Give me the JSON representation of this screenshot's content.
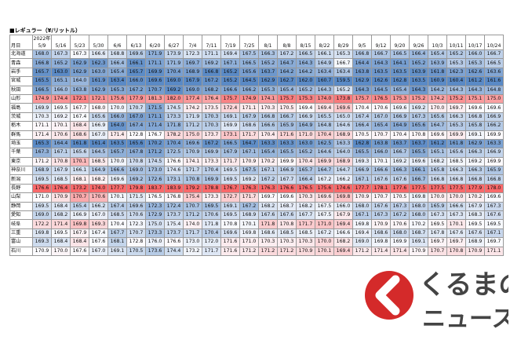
{
  "title": "■レギュラー（¥/リットル）",
  "table": {
    "year": "2022年",
    "corner": "月日",
    "columns": [
      "5/9",
      "5/16",
      "5/23",
      "5/30",
      "6/6",
      "6/13",
      "6/20",
      "6/27",
      "7/4",
      "7/11",
      "7/19",
      "7/25",
      "8/1",
      "8/8",
      "8/15",
      "8/22",
      "8/29",
      "9/5",
      "9/12",
      "9/20",
      "9/26",
      "10/3",
      "10/11",
      "10/17",
      "10/24"
    ],
    "rows": [
      {
        "name": "北海道",
        "values": [
          "168.0",
          "167.3",
          "167.3",
          "166.6",
          "168.8",
          "169.6",
          "171.9",
          "173.9",
          "172.3",
          "171.1",
          "169.4",
          "167.5",
          "166.3",
          "167.2",
          "166.5",
          "166.1",
          "165.3",
          "166.8",
          "166.7",
          "166.5",
          "166.4",
          "165.4",
          "165.2",
          "166.0",
          "166.7"
        ]
      },
      {
        "name": "青森",
        "values": [
          "166.8",
          "165.2",
          "162.9",
          "162.3",
          "166.4",
          "166.1",
          "171.1",
          "171.9",
          "169.7",
          "169.2",
          "167.1",
          "166.5",
          "165.2",
          "164.7",
          "164.3",
          "164.9",
          "166.7",
          "164.4",
          "164.3",
          "164.1",
          "165.2",
          "163.9",
          "165.3",
          "165.3",
          "166.5"
        ]
      },
      {
        "name": "岩手",
        "values": [
          "165.7",
          "163.0",
          "162.9",
          "163.0",
          "165.4",
          "165.7",
          "169.9",
          "170.4",
          "168.9",
          "166.8",
          "165.2",
          "165.6",
          "163.7",
          "164.2",
          "164.2",
          "163.4",
          "163.4",
          "163.8",
          "163.5",
          "163.5",
          "163.9",
          "161.8",
          "162.3",
          "162.6",
          "163.6"
        ]
      },
      {
        "name": "宮城",
        "values": [
          "165.5",
          "165.1",
          "164.0",
          "161.9",
          "163.4",
          "166.0",
          "169.6",
          "169.0",
          "167.9",
          "167.2",
          "165.2",
          "164.5",
          "162.9",
          "162.7",
          "162.0",
          "160.7",
          "159.5",
          "162.9",
          "162.6",
          "162.8",
          "163.5",
          "160.9",
          "160.4",
          "161.2",
          "161.6"
        ]
      },
      {
        "name": "秋田",
        "values": [
          "166.5",
          "166.0",
          "163.8",
          "162.9",
          "165.3",
          "167.2",
          "170.7",
          "169.2",
          "169.0",
          "168.2",
          "166.6",
          "166.2",
          "165.3",
          "165.4",
          "165.2",
          "164.3",
          "165.2",
          "164.3",
          "164.5",
          "165.4",
          "164.3",
          "164.2",
          "164.3",
          "164.3",
          "164.8"
        ]
      },
      {
        "name": "山形",
        "values": [
          "174.9",
          "174.4",
          "172.1",
          "172.1",
          "175.6",
          "177.9",
          "181.3",
          "182.0",
          "177.4",
          "176.4",
          "175.7",
          "174.9",
          "174.1",
          "175.7",
          "175.3",
          "174.0",
          "173.8",
          "175.7",
          "176.5",
          "175.3",
          "175.2",
          "174.2",
          "175.2",
          "175.1",
          "175.0"
        ]
      },
      {
        "name": "福島",
        "values": [
          "169.9",
          "169.5",
          "167.7",
          "168.0",
          "170.0",
          "170.7",
          "171.5",
          "174.5",
          "174.2",
          "173.5",
          "172.4",
          "171.1",
          "170.3",
          "170.5",
          "169.4",
          "169.4",
          "169.6",
          "170.4",
          "170.6",
          "169.6",
          "169.2",
          "170.0",
          "169.7",
          "169.6",
          "169.6"
        ]
      },
      {
        "name": "茨城",
        "values": [
          "170.3",
          "169.2",
          "167.4",
          "165.6",
          "166.0",
          "167.0",
          "171.1",
          "173.3",
          "171.9",
          "170.3",
          "169.1",
          "167.9",
          "166.8",
          "166.7",
          "166.9",
          "165.5",
          "165.0",
          "167.4",
          "167.0",
          "166.9",
          "167.3",
          "165.6",
          "166.3",
          "166.8",
          "166.9"
        ]
      },
      {
        "name": "栃木",
        "values": [
          "171.1",
          "170.1",
          "168.4",
          "166.9",
          "164.0",
          "167.4",
          "171.4",
          "171.8",
          "171.2",
          "170.3",
          "169.9",
          "168.6",
          "166.6",
          "165.9",
          "164.9",
          "164.8",
          "164.6",
          "166.4",
          "165.4",
          "164.9",
          "165.6",
          "164.7",
          "165.3",
          "165.8",
          "166.2"
        ]
      },
      {
        "name": "群馬",
        "values": [
          "171.4",
          "170.6",
          "168.6",
          "167.0",
          "171.4",
          "172.8",
          "176.7",
          "178.2",
          "175.0",
          "173.7",
          "173.1",
          "171.7",
          "170.4",
          "171.6",
          "171.0",
          "170.4",
          "168.9",
          "170.5",
          "170.7",
          "170.4",
          "170.8",
          "169.6",
          "169.9",
          "169.1",
          "169.9"
        ]
      },
      {
        "name": "埼玉",
        "values": [
          "165.3",
          "164.4",
          "161.8",
          "161.4",
          "163.5",
          "165.6",
          "170.2",
          "170.4",
          "169.6",
          "167.2",
          "166.5",
          "164.7",
          "163.3",
          "163.3",
          "163.0",
          "162.5",
          "163.3",
          "162.8",
          "163.8",
          "163.7",
          "163.7",
          "161.2",
          "161.8",
          "162.9",
          "163.3"
        ]
      },
      {
        "name": "千葉",
        "values": [
          "167.3",
          "167.1",
          "165.6",
          "164.5",
          "165.7",
          "167.8",
          "171.2",
          "172.5",
          "170.9",
          "169.9",
          "167.9",
          "167.1",
          "165.4",
          "165.5",
          "165.2",
          "164.6",
          "164.0",
          "165.5",
          "166.0",
          "166.7",
          "165.5",
          "165.1",
          "165.6",
          "166.3",
          "166.9"
        ]
      },
      {
        "name": "東京",
        "values": [
          "171.2",
          "170.8",
          "170.1",
          "168.5",
          "170.0",
          "170.8",
          "174.5",
          "176.6",
          "174.1",
          "173.3",
          "171.7",
          "170.9",
          "170.2",
          "169.9",
          "170.4",
          "169.9",
          "168.9",
          "169.3",
          "170.1",
          "169.2",
          "169.6",
          "168.2",
          "168.5",
          "169.2",
          "169.9"
        ]
      },
      {
        "name": "神奈川",
        "values": [
          "168.9",
          "167.9",
          "166.1",
          "164.9",
          "166.6",
          "169.0",
          "173.0",
          "174.6",
          "171.7",
          "170.4",
          "169.5",
          "167.5",
          "167.1",
          "166.9",
          "165.7",
          "164.7",
          "164.7",
          "166.9",
          "166.6",
          "166.3",
          "166.1",
          "165.8",
          "166.3",
          "166.3",
          "165.9"
        ]
      },
      {
        "name": "新潟",
        "values": [
          "169.5",
          "168.5",
          "168.1",
          "168.2",
          "169.6",
          "169.2",
          "172.6",
          "173.1",
          "170.8",
          "169.9",
          "169.5",
          "169.2",
          "167.2",
          "167.7",
          "166.4",
          "167.2",
          "166.2",
          "167.1",
          "167.6",
          "167.6",
          "166.7",
          "166.8",
          "166.8",
          "166.8",
          "166.8"
        ]
      },
      {
        "name": "長野",
        "values": [
          "176.6",
          "176.4",
          "173.2",
          "174.0",
          "177.7",
          "179.8",
          "183.7",
          "183.9",
          "179.2",
          "178.8",
          "176.7",
          "176.3",
          "176.3",
          "176.6",
          "176.5",
          "175.6",
          "174.6",
          "177.7",
          "178.1",
          "177.6",
          "177.5",
          "177.5",
          "177.5",
          "177.9",
          "178.0"
        ]
      },
      {
        "name": "山梨",
        "values": [
          "171.0",
          "170.9",
          "170.7",
          "170.6",
          "170.1",
          "171.5",
          "176.5",
          "176.8",
          "175.4",
          "173.3",
          "172.7",
          "171.7",
          "169.7",
          "169.6",
          "170.3",
          "169.6",
          "169.8",
          "170.9",
          "170.7",
          "170.5",
          "169.8",
          "170.0",
          "170.0",
          "170.2",
          "169.6"
        ]
      },
      {
        "name": "静岡",
        "values": [
          "169.5",
          "168.4",
          "165.4",
          "166.2",
          "167.4",
          "169.6",
          "172.3",
          "172.4",
          "170.7",
          "169.5",
          "169.1",
          "167.2",
          "168.2",
          "168.7",
          "168.2",
          "167.5",
          "166.0",
          "168.0",
          "167.6",
          "167.3",
          "168.0",
          "165.9",
          "166.6",
          "167.9",
          "167.3"
        ]
      },
      {
        "name": "愛知",
        "values": [
          "169.0",
          "168.2",
          "166.9",
          "167.0",
          "168.5",
          "170.6",
          "172.9",
          "173.7",
          "171.2",
          "170.6",
          "169.5",
          "168.9",
          "167.6",
          "167.6",
          "167.7",
          "167.5",
          "167.9",
          "167.1",
          "167.3",
          "167.2",
          "168.0",
          "167.3",
          "167.3",
          "168.3",
          "167.6"
        ]
      },
      {
        "name": "岐阜",
        "values": [
          "172.2",
          "171.4",
          "169.8",
          "169.3",
          "170.4",
          "172.3",
          "175.0",
          "175.4",
          "174.0",
          "171.8",
          "170.8",
          "170.1",
          "171.8",
          "170.8",
          "171.7",
          "171.0",
          "169.4",
          "169.8",
          "170.9",
          "170.6",
          "170.2",
          "169.5",
          "170.1",
          "169.5",
          "169.5"
        ]
      },
      {
        "name": "三重",
        "values": [
          "169.8",
          "169.5",
          "167.9",
          "167.4",
          "167.7",
          "170.7",
          "173.3",
          "173.7",
          "171.7",
          "170.4",
          "169.6",
          "169.8",
          "168.6",
          "168.5",
          "168.5",
          "167.2",
          "166.6",
          "169.4",
          "168.6",
          "168.0",
          "168.7",
          "167.8",
          "167.6",
          "167.6",
          "167.1"
        ]
      },
      {
        "name": "富山",
        "values": [
          "169.3",
          "168.4",
          "168.4",
          "167.6",
          "168.1",
          "172.8",
          "176.0",
          "176.6",
          "173.0",
          "172.0",
          "171.6",
          "171.0",
          "170.3",
          "170.3",
          "170.3",
          "170.0",
          "168.2",
          "169.0",
          "169.8",
          "169.9",
          "169.1",
          "169.7",
          "169.7",
          "168.9",
          "169.7"
        ]
      },
      {
        "name": "石川",
        "values": [
          "170.9",
          "170.0",
          "167.6",
          "167.0",
          "169.1",
          "170.5",
          "173.6",
          "174.4",
          "173.2",
          "171.7",
          "171.6",
          "171.2",
          "171.2",
          "171.2",
          "170.9",
          "170.1",
          "169.4",
          "171.2",
          "171.4",
          "171.4",
          "170.9",
          "170.7",
          "170.8",
          "170.9",
          "171.1"
        ]
      }
    ]
  },
  "logo": {
    "line1": "くるまの",
    "line2": "ニュース"
  }
}
